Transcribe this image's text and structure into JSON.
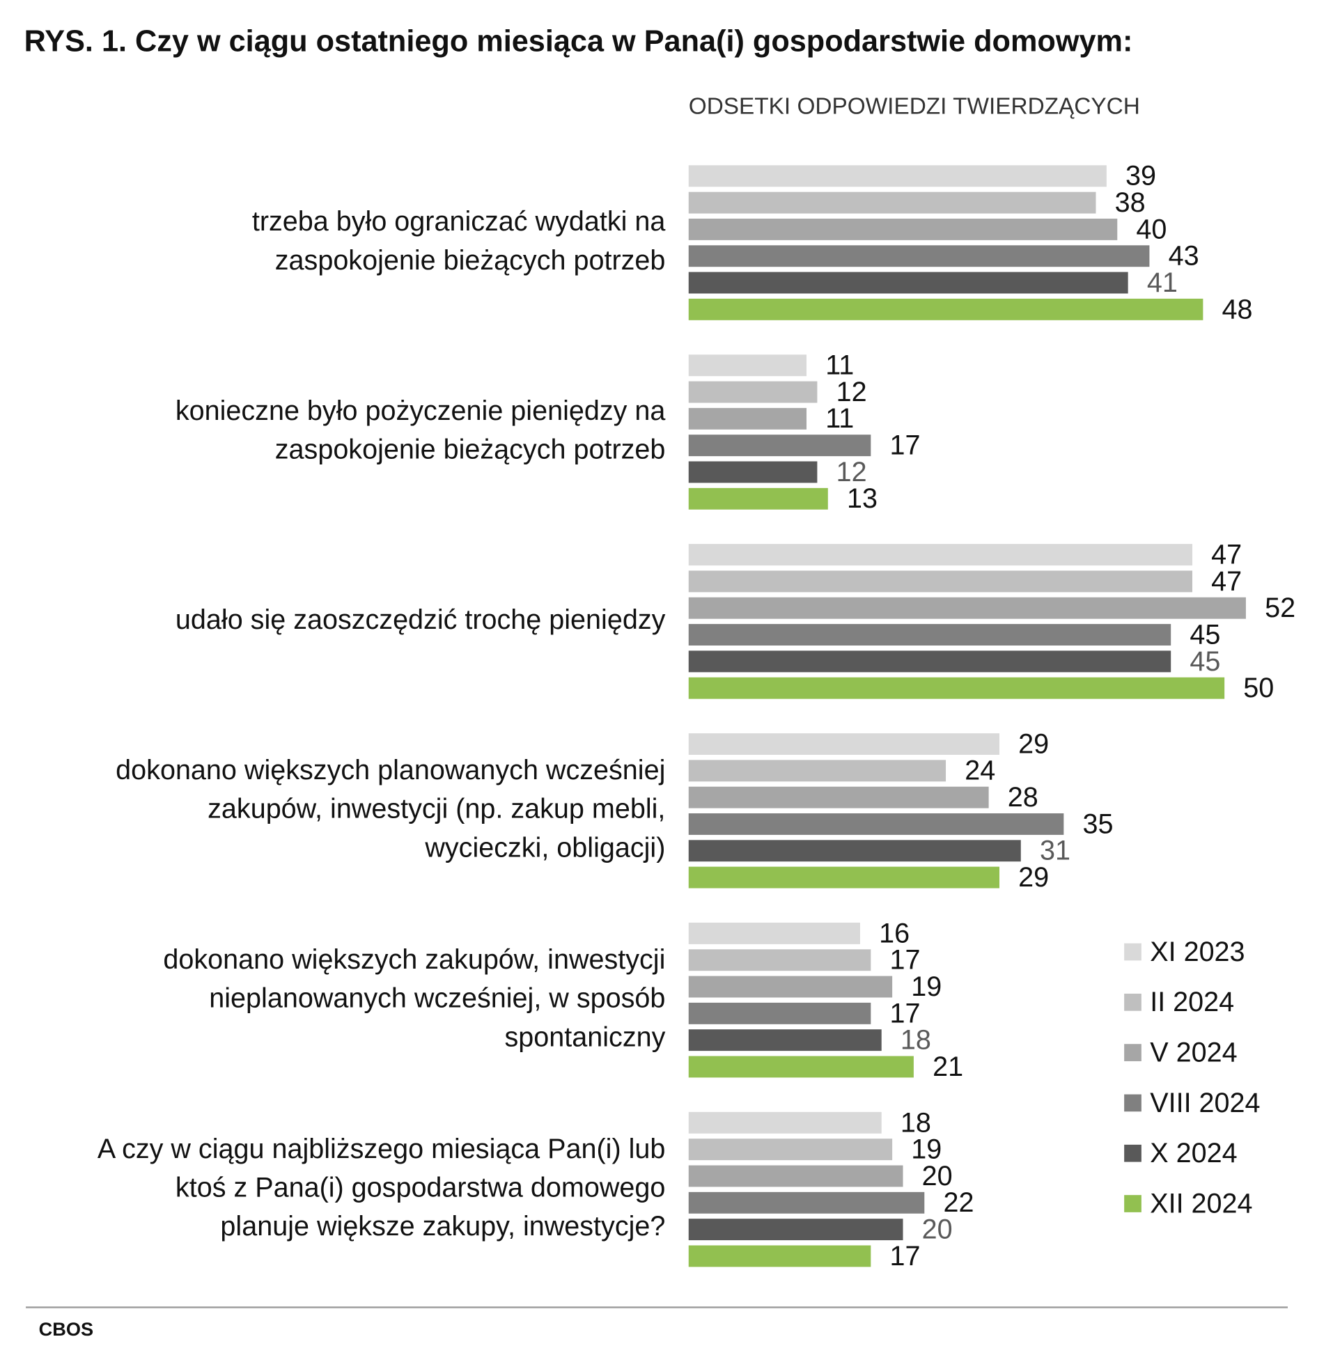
{
  "chart_data": {
    "type": "hbar_grouped",
    "title": "RYS. 1. Czy w ciągu ostatniego miesiąca w Pana(i) gospodarstwie domowym:",
    "subtitle": "ODSETKI ODPOWIEDZI TWIERDZĄCYCH",
    "source": "CBOS",
    "categories": [
      [
        "trzeba było ograniczać wydatki na",
        "zaspokojenie bieżących potrzeb"
      ],
      [
        "konieczne było pożyczenie pieniędzy na",
        "zaspokojenie bieżących potrzeb"
      ],
      [
        "udało się zaoszczędzić trochę pieniędzy"
      ],
      [
        "dokonano większych planowanych wcześniej",
        "zakupów, inwestycji (np. zakup mebli,",
        "wycieczki, obligacji)"
      ],
      [
        "dokonano większych zakupów, inwestycji",
        "nieplanowanych wcześniej, w sposób",
        "spontaniczny"
      ],
      [
        "A czy w ciągu najbliższego miesiąca Pan(i) lub",
        "ktoś z Pana(i) gospodarstwa domowego",
        "planuje większe zakupy, inwestycje?"
      ]
    ],
    "series": [
      {
        "name": "XI 2023",
        "color": "#d9d9d9",
        "label_color": "#111111",
        "values": [
          39,
          11,
          47,
          29,
          16,
          18
        ]
      },
      {
        "name": "II 2024",
        "color": "#bfbfbf",
        "label_color": "#111111",
        "values": [
          38,
          12,
          47,
          24,
          17,
          19
        ]
      },
      {
        "name": "V 2024",
        "color": "#a6a6a6",
        "label_color": "#111111",
        "values": [
          40,
          11,
          52,
          28,
          19,
          20
        ]
      },
      {
        "name": "VIII 2024",
        "color": "#808080",
        "label_color": "#111111",
        "values": [
          43,
          17,
          45,
          35,
          17,
          22
        ]
      },
      {
        "name": "X 2024",
        "color": "#595959",
        "label_color": "#595959",
        "values": [
          41,
          12,
          45,
          31,
          18,
          20
        ]
      },
      {
        "name": "XII 2024",
        "color": "#92c050",
        "label_color": "#111111",
        "values": [
          48,
          13,
          50,
          29,
          21,
          17
        ]
      }
    ],
    "legend": "bottom-right"
  }
}
